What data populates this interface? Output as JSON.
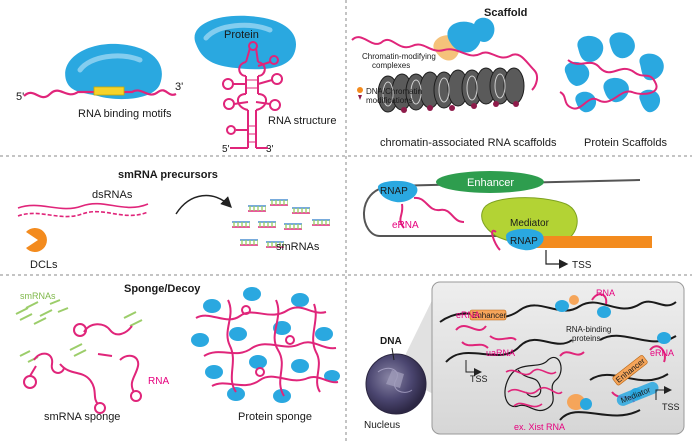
{
  "colors": {
    "rna": "#e0257a",
    "protein": "#2aa8e0",
    "enhancer": "#2e9d4e",
    "mediator": "#b3d334",
    "orange": "#f38b1e",
    "smrna": "#9ccd6a",
    "panel_bg": "#e6e6e6",
    "divider": "#888888"
  },
  "panels": {
    "binding": {
      "five_prime": "5'",
      "three_prime": "3'",
      "motif_label": "RNA binding motifs",
      "protein_label": "Protein",
      "structure_label": "RNA structure",
      "structure_five": "5'",
      "structure_three": "3'"
    },
    "scaffold": {
      "title": "Scaffold",
      "chromatin_complex_line1": "Chromatin-modifying",
      "chromatin_complex_line2": "complexes",
      "dna_mod_line1": "DNA/Chromatin",
      "dna_mod_line2": "modifications",
      "chromatin_caption": "chromatin-associated RNA scaffolds",
      "protein_caption": "Protein Scaffolds"
    },
    "smrna": {
      "title": "smRNA precursors",
      "dsrna_label": "dsRNAs",
      "dcl_label": "DCLs",
      "smrna_label": "smRNAs"
    },
    "enhancer": {
      "enhancer_label": "Enhancer",
      "rnap_top": "RNAP",
      "rnap_bottom": "RNAP",
      "mediator_label": "Mediator",
      "erna_label": "eRNA",
      "tss_label": "TSS"
    },
    "sponge": {
      "title": "Sponge/Decoy",
      "smrnas_label": "smRNAs",
      "rna_label": "RNA",
      "smrna_sponge_caption": "smRNA sponge",
      "protein_sponge_caption": "Protein sponge"
    },
    "nucleus": {
      "dna_label": "DNA",
      "nucleus_label": "Nucleus",
      "enhancer_top": "Enhancer",
      "erna_top": "eRNA",
      "uarna_label": "uaRNA",
      "rna_label": "RNA",
      "rbp_line1": "RNA-binding",
      "rbp_line2": "proteins",
      "tss_left": "TSS",
      "enhancer_right": "Enhancer",
      "erna_right": "eRNA",
      "mediator_label": "Mediator",
      "tss_right": "TSS",
      "xist_label": "ex. Xist RNA"
    }
  }
}
